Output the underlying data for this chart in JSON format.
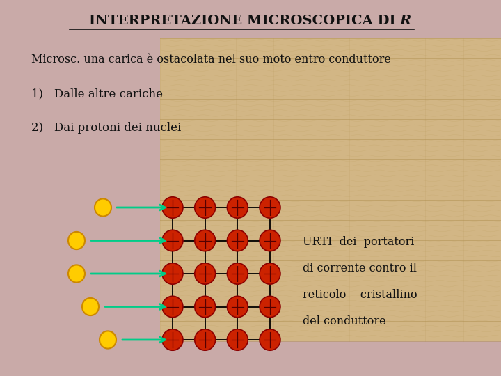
{
  "title_main": "INTERPRETAZIONE MICROSCOPICA DI ",
  "title_italic": "R",
  "bg_color": "#c9aaa8",
  "photo_color": "#d4b882",
  "text_color": "#111111",
  "line1": "Microsc. una carica è ostacolata nel suo moto entro conduttore",
  "item1": "1)   Dalle altre cariche",
  "item2": "2)   Dai protoni dei nuclei",
  "urti_text": [
    "URTI  dei  portatori",
    "di corrente contro il",
    "reticolo    cristallino",
    "del conduttore"
  ],
  "lattice_rows": 5,
  "lattice_cols": 4,
  "node_color": "#cc2200",
  "node_edge_color": "#8b0000",
  "arrow_color": "#00cc88",
  "particle_color": "#ffcc00",
  "particle_edge": "#cc8800",
  "figsize": [
    7.2,
    5.4
  ],
  "dpi": 100
}
